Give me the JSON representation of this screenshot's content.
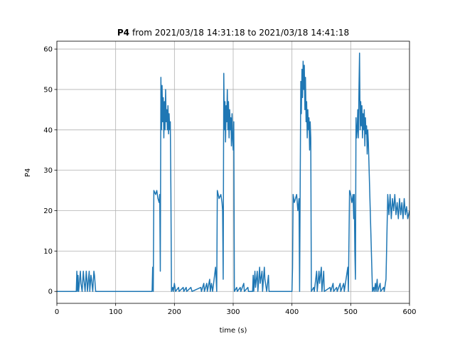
{
  "chart_data": {
    "type": "line",
    "title_bold": "P4",
    "title": "from 2021/03/18 14:31:18 to 2021/03/18 14:41:18",
    "xlabel": "time (s)",
    "ylabel": "P4",
    "xlim": [
      0,
      600
    ],
    "ylim": [
      -2.95,
      61.95
    ],
    "xticks": [
      0,
      100,
      200,
      300,
      400,
      500,
      600
    ],
    "yticks": [
      0,
      10,
      20,
      30,
      40,
      50,
      60
    ],
    "grid": true,
    "series": [
      {
        "color": "#1f77b4",
        "x": [
          0,
          33,
          34,
          35,
          36,
          37,
          40,
          41,
          43,
          45,
          46,
          48,
          50,
          51,
          52,
          55,
          56,
          58,
          59,
          61,
          63,
          64,
          66,
          162,
          163,
          164,
          165,
          168,
          170,
          172,
          174,
          175,
          176,
          177,
          178,
          179,
          180,
          181,
          182,
          183,
          184,
          185,
          186,
          187,
          188,
          189,
          190,
          191,
          192,
          193,
          194,
          195,
          197,
          198,
          200,
          202,
          207,
          208,
          215,
          216,
          220,
          221,
          228,
          230,
          245,
          246,
          250,
          251,
          255,
          256,
          260,
          261,
          263,
          265,
          270,
          272,
          273,
          276,
          279,
          281,
          282,
          283,
          284,
          285,
          286,
          287,
          288,
          289,
          290,
          291,
          292,
          293,
          294,
          295,
          296,
          297,
          298,
          299,
          300,
          301,
          302,
          306,
          307,
          312,
          313,
          318,
          319,
          325,
          326,
          333,
          334,
          335,
          337,
          338,
          341,
          342,
          345,
          346,
          349,
          350,
          353,
          354,
          357,
          360,
          361,
          400,
          401,
          402,
          404,
          406,
          408,
          410,
          412,
          413,
          415,
          416,
          417,
          418,
          419,
          420,
          421,
          422,
          423,
          424,
          425,
          426,
          427,
          428,
          429,
          430,
          431,
          432,
          433,
          437,
          438,
          442,
          443,
          446,
          447,
          450,
          451,
          454,
          455,
          465,
          466,
          470,
          471,
          476,
          477,
          482,
          483,
          488,
          489,
          495,
          496,
          498,
          500,
          502,
          504,
          505,
          506,
          507,
          508,
          509,
          510,
          511,
          512,
          513,
          514,
          515,
          516,
          517,
          518,
          519,
          520,
          521,
          522,
          523,
          524,
          525,
          526,
          527,
          528,
          529,
          530,
          537,
          539,
          540,
          542,
          543,
          545,
          546,
          550,
          551,
          556,
          557,
          560,
          561,
          563,
          565,
          567,
          569,
          571,
          573,
          575,
          577,
          579,
          581,
          583,
          585,
          587,
          589,
          591,
          593,
          595,
          597,
          600
        ],
        "values": [
          0,
          0,
          5,
          0,
          4,
          0,
          5,
          2,
          0,
          5,
          3,
          0,
          5,
          3,
          0,
          5,
          0,
          4,
          3,
          0,
          5,
          4,
          0,
          0,
          6,
          0,
          25,
          24,
          25,
          23,
          22,
          24,
          5,
          53,
          40,
          51,
          42,
          48,
          38,
          47,
          40,
          50,
          42,
          45,
          40,
          46,
          39,
          44,
          40,
          42,
          25,
          0,
          1,
          0,
          2,
          0,
          1,
          0,
          1,
          0,
          1,
          0,
          1,
          0,
          1,
          0,
          2,
          0,
          2,
          0,
          3,
          0,
          2,
          0,
          6,
          0,
          25,
          23,
          24,
          22,
          20,
          3,
          54,
          40,
          47,
          37,
          46,
          42,
          50,
          40,
          47,
          38,
          45,
          40,
          43,
          36,
          44,
          38,
          35,
          42,
          0,
          1,
          0,
          1,
          0,
          2,
          0,
          1,
          0,
          0,
          4,
          0,
          5,
          1,
          5,
          0,
          6,
          2,
          5,
          0,
          6,
          3,
          0,
          4,
          0,
          0,
          6,
          24,
          22,
          23,
          24,
          20,
          23,
          0,
          52,
          44,
          55,
          48,
          57,
          50,
          56,
          45,
          53,
          42,
          47,
          38,
          45,
          40,
          43,
          35,
          42,
          38,
          0,
          1,
          0,
          5,
          0,
          5,
          2,
          6,
          0,
          5,
          0,
          1,
          0,
          2,
          0,
          1,
          0,
          2,
          0,
          2,
          0,
          6,
          0,
          25,
          24,
          22,
          24,
          18,
          24,
          10,
          3,
          43,
          38,
          40,
          45,
          38,
          50,
          59,
          40,
          47,
          41,
          46,
          38,
          44,
          40,
          45,
          36,
          43,
          39,
          41,
          34,
          40,
          37,
          0,
          1,
          0,
          2,
          0,
          3,
          0,
          2,
          0,
          1,
          0,
          3,
          10,
          24,
          19,
          24,
          18,
          23,
          20,
          24,
          19,
          22,
          18,
          23,
          19,
          22,
          18,
          23,
          19,
          21,
          18,
          20
        ]
      }
    ]
  }
}
